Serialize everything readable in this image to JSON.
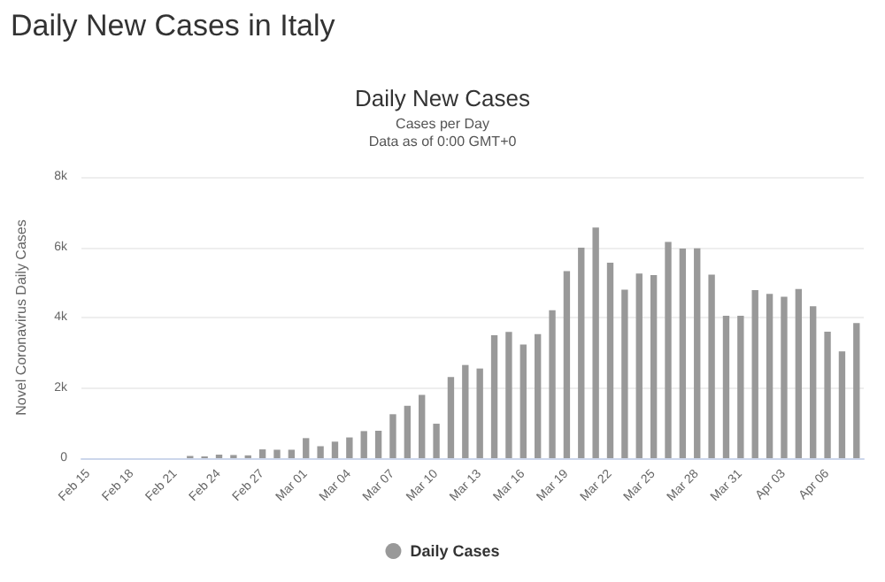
{
  "chart_data": {
    "type": "bar",
    "title": "Daily New Cases",
    "subtitle": "Cases per Day\nData as of 0:00 GMT+0",
    "ylabel": "Novel Coronavirus Daily Cases",
    "annotations": [
      "Daily New Cases in Italy"
    ],
    "categories": [
      "Feb 15",
      null,
      null,
      "Feb 18",
      null,
      null,
      "Feb 21",
      null,
      null,
      "Feb 24",
      null,
      null,
      "Feb 27",
      null,
      null,
      "Mar 01",
      null,
      null,
      "Mar 04",
      null,
      null,
      "Mar 07",
      null,
      null,
      "Mar 10",
      null,
      null,
      "Mar 13",
      null,
      null,
      "Mar 16",
      null,
      null,
      "Mar 19",
      null,
      null,
      "Mar 22",
      null,
      null,
      "Mar 25",
      null,
      null,
      "Mar 28",
      null,
      null,
      "Mar 31",
      null,
      null,
      "Apr 03",
      null,
      null,
      "Apr 06",
      null,
      null
    ],
    "series": [
      {
        "name": "Daily Cases",
        "color": "#999999",
        "values": [
          0,
          0,
          0,
          0,
          0,
          0,
          0,
          60,
          50,
          100,
          90,
          80,
          250,
          240,
          240,
          570,
          340,
          470,
          590,
          770,
          780,
          1250,
          1490,
          1800,
          980,
          2310,
          2650,
          2550,
          3500,
          3590,
          3230,
          3530,
          4210,
          5320,
          5990,
          6560,
          5560,
          4790,
          5250,
          5210,
          6150,
          5960,
          5970,
          5220,
          4050,
          4050,
          4780,
          4670,
          4590,
          4810,
          4320,
          3600,
          3040,
          3840
        ]
      }
    ],
    "ylim": [
      0,
      8000
    ],
    "yticks": [
      {
        "value": 0,
        "label": "0"
      },
      {
        "value": 2000,
        "label": "2k"
      },
      {
        "value": 4000,
        "label": "4k"
      },
      {
        "value": 6000,
        "label": "6k"
      },
      {
        "value": 8000,
        "label": "8k"
      }
    ],
    "grid": "y",
    "legend": "bottom"
  }
}
